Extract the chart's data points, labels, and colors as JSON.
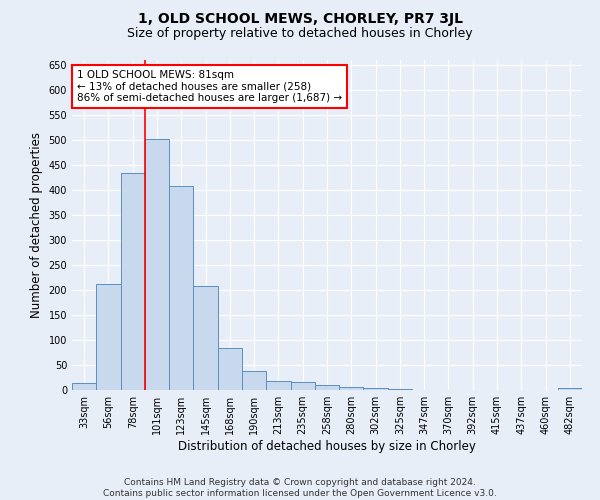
{
  "title": "1, OLD SCHOOL MEWS, CHORLEY, PR7 3JL",
  "subtitle": "Size of property relative to detached houses in Chorley",
  "xlabel": "Distribution of detached houses by size in Chorley",
  "ylabel": "Number of detached properties",
  "footer_line1": "Contains HM Land Registry data © Crown copyright and database right 2024.",
  "footer_line2": "Contains public sector information licensed under the Open Government Licence v3.0.",
  "categories": [
    "33sqm",
    "56sqm",
    "78sqm",
    "101sqm",
    "123sqm",
    "145sqm",
    "168sqm",
    "190sqm",
    "213sqm",
    "235sqm",
    "258sqm",
    "280sqm",
    "302sqm",
    "325sqm",
    "347sqm",
    "370sqm",
    "392sqm",
    "415sqm",
    "437sqm",
    "460sqm",
    "482sqm"
  ],
  "values": [
    15,
    213,
    435,
    503,
    408,
    208,
    85,
    38,
    18,
    17,
    10,
    6,
    4,
    2,
    1,
    1,
    1,
    1,
    0,
    0,
    4
  ],
  "bar_color": "#c8d9ed",
  "bar_edge_color": "#5a8fc0",
  "vline_x_index": 2.5,
  "vline_color": "red",
  "annotation_text": "1 OLD SCHOOL MEWS: 81sqm\n← 13% of detached houses are smaller (258)\n86% of semi-detached houses are larger (1,687) →",
  "annotation_box_color": "white",
  "annotation_box_edge_color": "red",
  "ylim": [
    0,
    660
  ],
  "yticks": [
    0,
    50,
    100,
    150,
    200,
    250,
    300,
    350,
    400,
    450,
    500,
    550,
    600,
    650
  ],
  "background_color": "#e8eef7",
  "plot_background_color": "#e8eef7",
  "title_fontsize": 10,
  "subtitle_fontsize": 9,
  "xlabel_fontsize": 8.5,
  "ylabel_fontsize": 8.5,
  "tick_fontsize": 7,
  "annotation_fontsize": 7.5,
  "footer_fontsize": 6.5
}
